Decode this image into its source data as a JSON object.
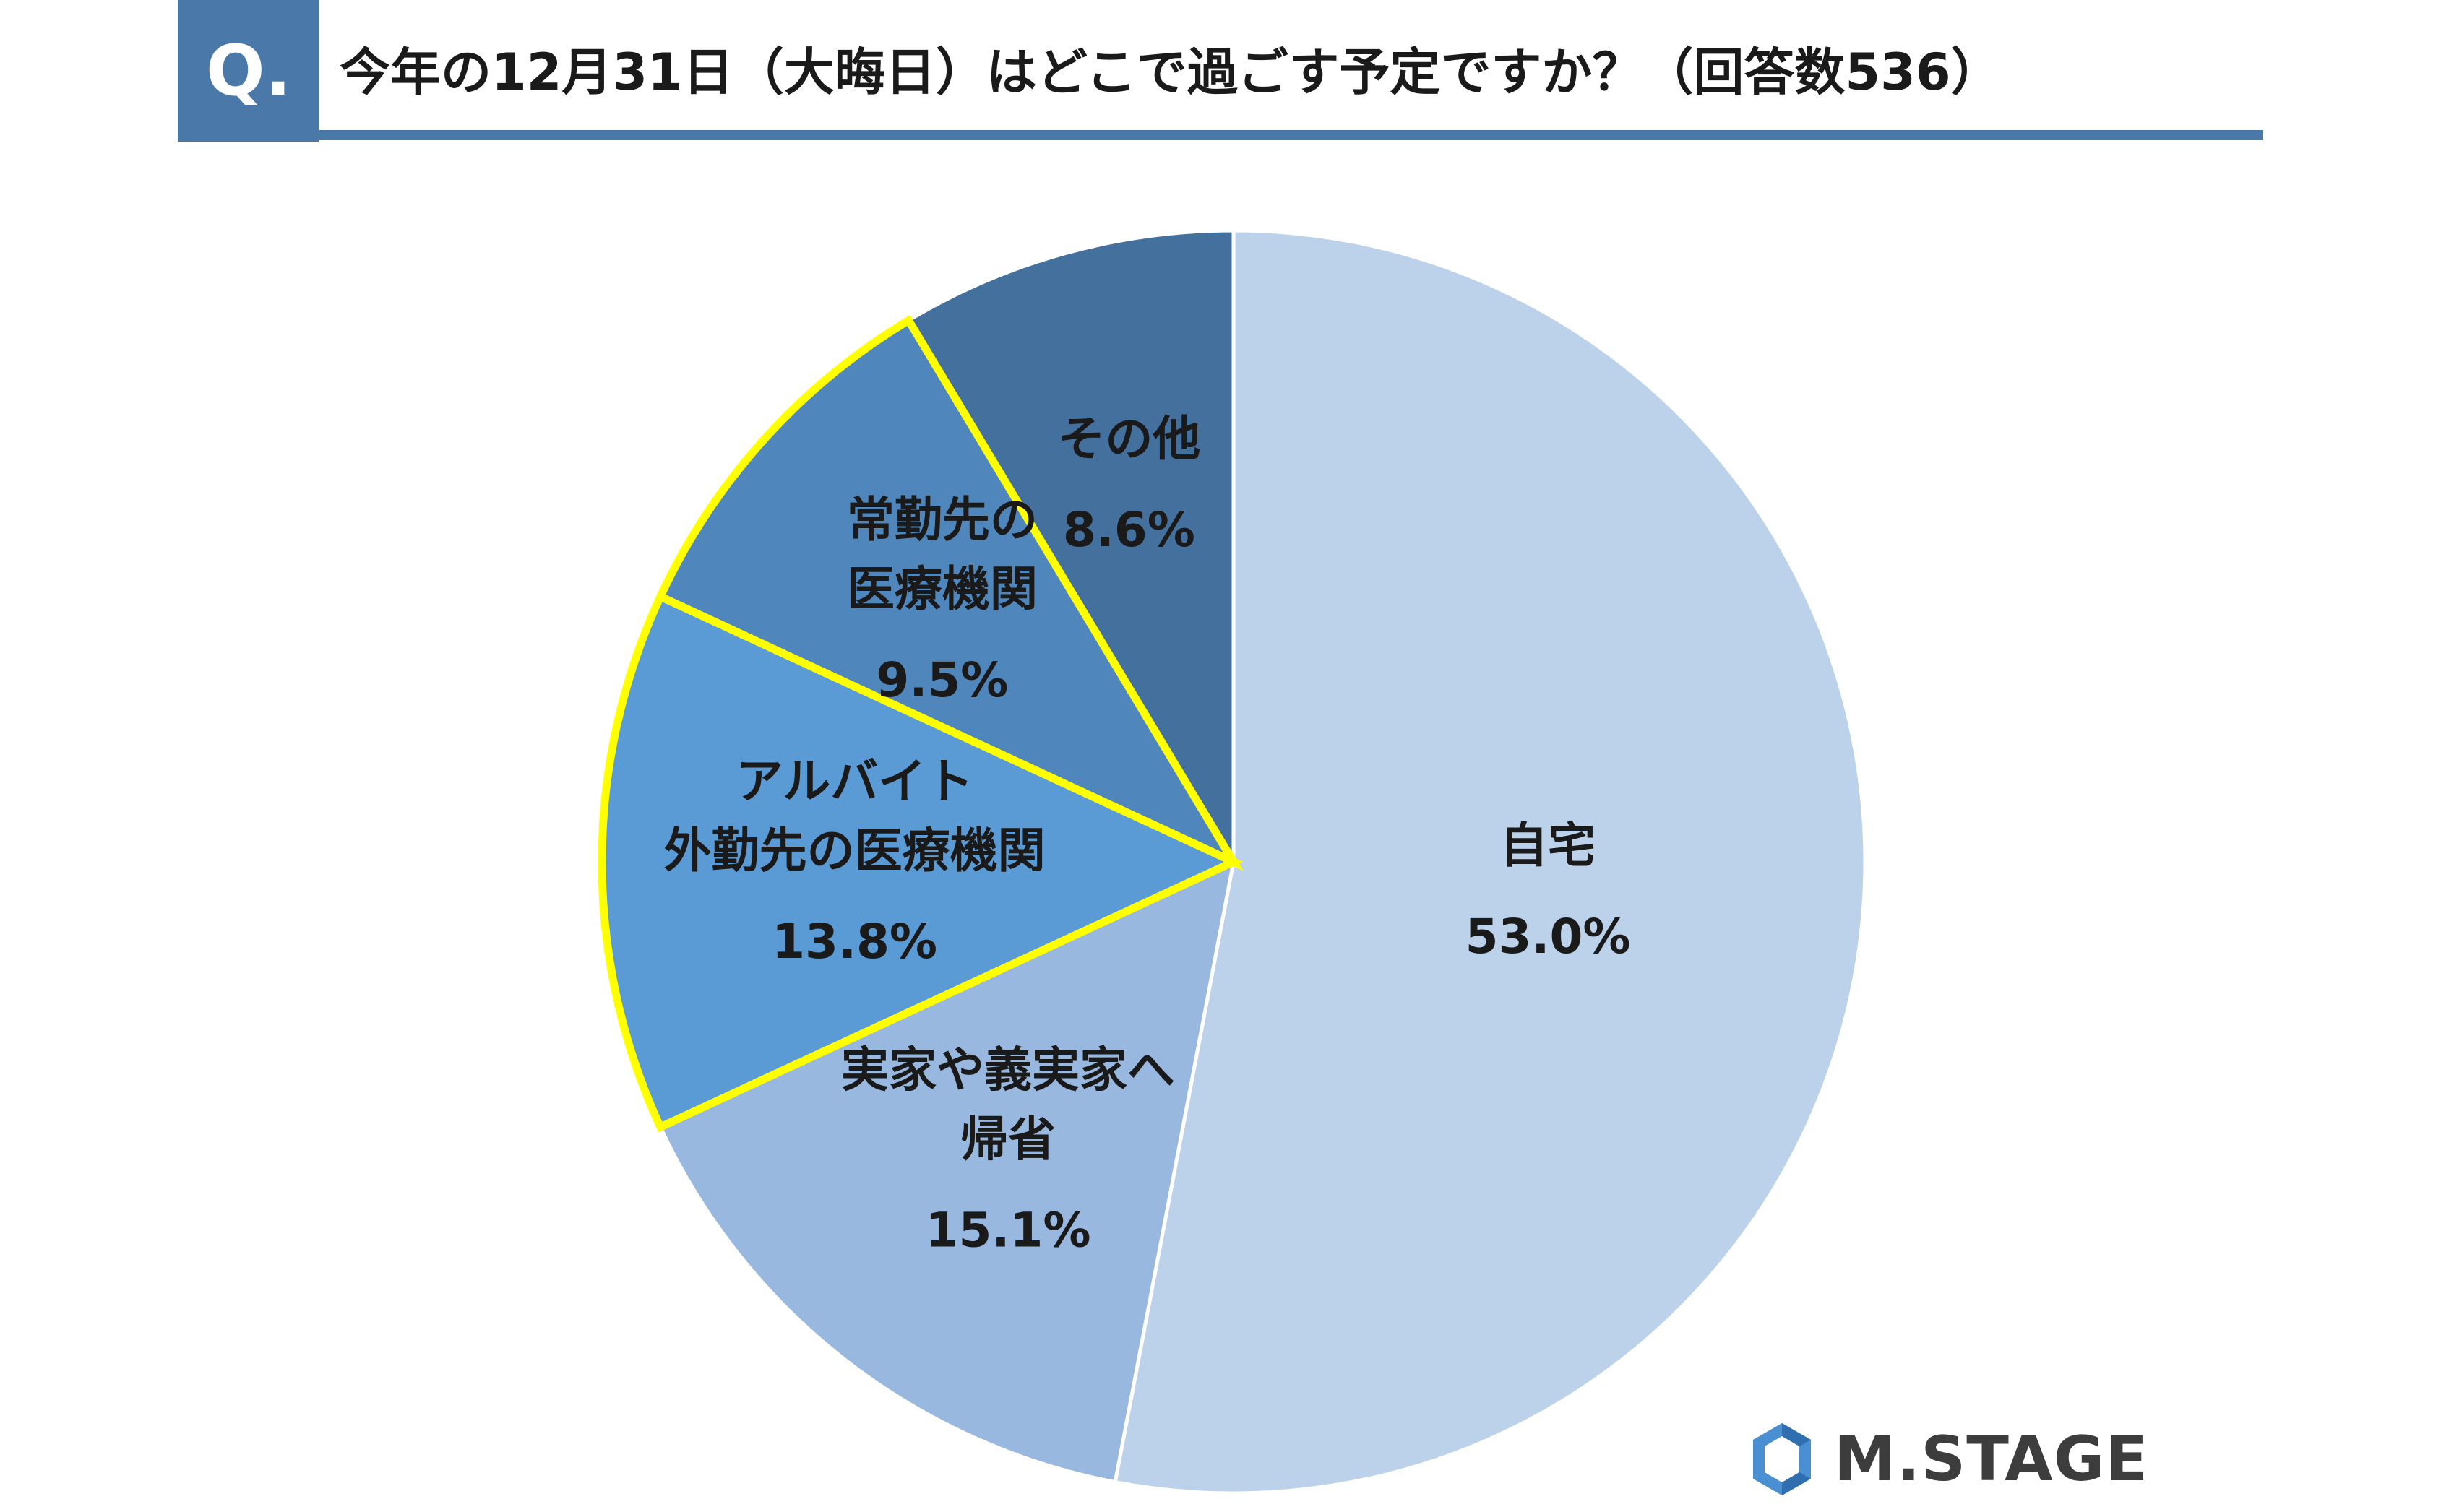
{
  "header": {
    "badge": "Q.",
    "question": "今年の12月31日（大晦日）はどこで過ごす予定ですか？（回答数536）"
  },
  "colors": {
    "accent": "#4a78a9",
    "highlight": "#ffff00"
  },
  "chart_data": {
    "type": "pie",
    "title": "今年の12月31日（大晦日）はどこで過ごす予定ですか？（回答数536）",
    "respondents": 536,
    "unit": "%",
    "start": "12 o'clock, clockwise",
    "slices": [
      {
        "label_lines": [
          "自宅"
        ],
        "value": 53.0,
        "value_label": "53.0%",
        "color": "#bcd1ea",
        "highlighted": false
      },
      {
        "label_lines": [
          "実家や義実家へ",
          "帰省"
        ],
        "value": 15.1,
        "value_label": "15.1%",
        "color": "#98b8df",
        "highlighted": false
      },
      {
        "label_lines": [
          "アルバイト",
          "外勤先の医療機関"
        ],
        "value": 13.8,
        "value_label": "13.8%",
        "color": "#5b9bd5",
        "highlighted": true
      },
      {
        "label_lines": [
          "常勤先の",
          "医療機関"
        ],
        "value": 9.5,
        "value_label": "9.5%",
        "color": "#4f86bb",
        "highlighted": true
      },
      {
        "label_lines": [
          "その他"
        ],
        "value": 8.6,
        "value_label": "8.6%",
        "color": "#44709d",
        "highlighted": false
      }
    ]
  },
  "footer": {
    "logo_text": "M.STAGE",
    "logo_icon": "hexagon-logo-icon"
  }
}
